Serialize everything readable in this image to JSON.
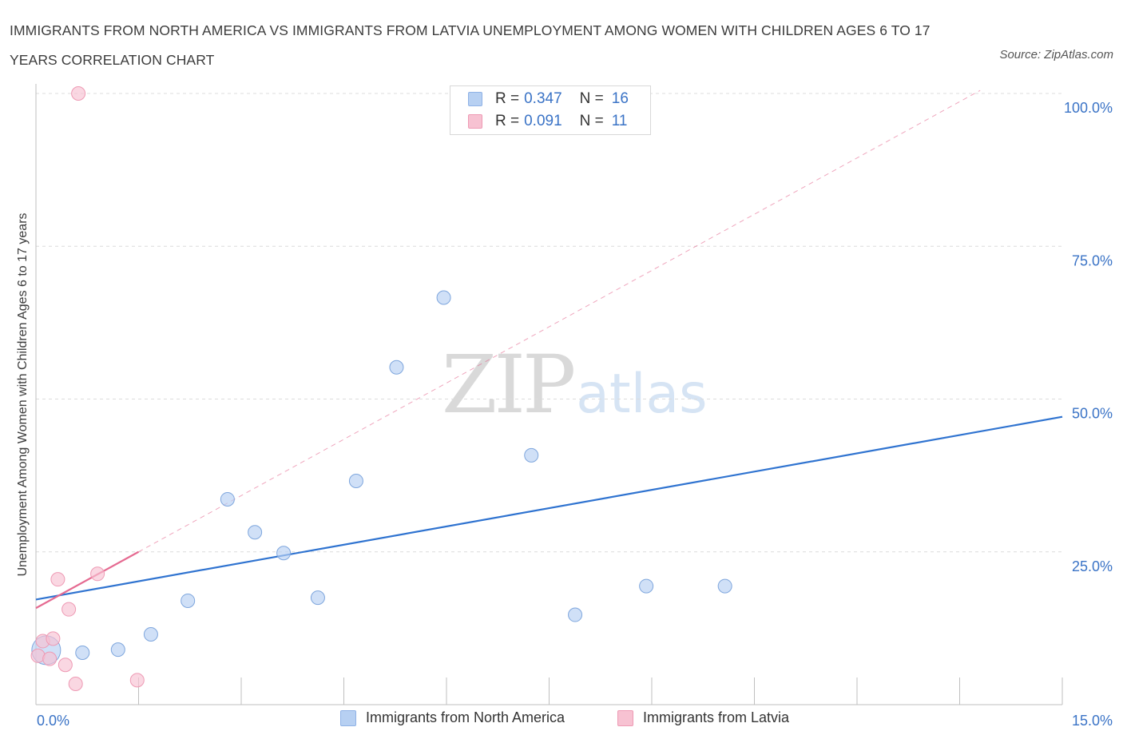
{
  "title": "IMMIGRANTS FROM NORTH AMERICA VS IMMIGRANTS FROM LATVIA UNEMPLOYMENT AMONG WOMEN WITH CHILDREN AGES 6 TO 17 YEARS CORRELATION CHART",
  "source": "Source: ZipAtlas.com",
  "watermark": {
    "zip": "ZIP",
    "atlas": "atlas"
  },
  "legend": {
    "rows": [
      {
        "r_label": "R =",
        "r_value": "0.347",
        "n_label": "N =",
        "n_value": "16",
        "color": "#b7d0f2",
        "border": "#8fb2e6"
      },
      {
        "r_label": "R =",
        "r_value": "0.091",
        "n_label": "N =",
        "n_value": "11",
        "color": "#f7c2d2",
        "border": "#ee9ab4"
      }
    ]
  },
  "chart_data": {
    "type": "scatter",
    "ylabel": "Unemployment Among Women with Children Ages 6 to 17 years",
    "xlim": [
      0,
      15
    ],
    "ylim": [
      0,
      100
    ],
    "x_tick_labels": [
      {
        "value": 0,
        "label": "0.0%"
      },
      {
        "value": 15,
        "label": "15.0%"
      }
    ],
    "y_tick_labels": [
      {
        "value": 25,
        "label": "25.0%"
      },
      {
        "value": 50,
        "label": "50.0%"
      },
      {
        "value": 75,
        "label": "75.0%"
      },
      {
        "value": 100,
        "label": "100.0%"
      }
    ],
    "grid": {
      "horizontal": true,
      "dashed": true
    },
    "series": [
      {
        "name": "Immigrants from North America",
        "color": "#b7d0f2",
        "stroke": "#7ea6dd",
        "trend_color": "#2f73d0",
        "points": [
          {
            "x": 0.15,
            "y": 8.9,
            "big": true
          },
          {
            "x": 0.68,
            "y": 8.5
          },
          {
            "x": 1.2,
            "y": 9.0
          },
          {
            "x": 1.68,
            "y": 11.5
          },
          {
            "x": 2.22,
            "y": 17.0
          },
          {
            "x": 2.8,
            "y": 33.6
          },
          {
            "x": 3.2,
            "y": 28.2
          },
          {
            "x": 3.62,
            "y": 24.8
          },
          {
            "x": 4.12,
            "y": 17.5
          },
          {
            "x": 4.68,
            "y": 36.6
          },
          {
            "x": 5.27,
            "y": 55.2
          },
          {
            "x": 5.96,
            "y": 66.6
          },
          {
            "x": 7.24,
            "y": 40.8
          },
          {
            "x": 7.88,
            "y": 14.7
          },
          {
            "x": 8.92,
            "y": 19.4
          },
          {
            "x": 10.07,
            "y": 19.4
          }
        ],
        "trend": {
          "x0": 0,
          "y0": 17.2,
          "x1": 15,
          "y1": 47.1
        }
      },
      {
        "name": "Immigrants from Latvia",
        "color": "#f7c2d2",
        "stroke": "#ee9ab4",
        "trend_color": "#e56a91",
        "points": [
          {
            "x": 0.03,
            "y": 8.0
          },
          {
            "x": 0.1,
            "y": 10.4
          },
          {
            "x": 0.2,
            "y": 7.5
          },
          {
            "x": 0.25,
            "y": 10.8
          },
          {
            "x": 0.32,
            "y": 20.5
          },
          {
            "x": 0.43,
            "y": 6.5
          },
          {
            "x": 0.48,
            "y": 15.6
          },
          {
            "x": 0.58,
            "y": 3.4
          },
          {
            "x": 0.62,
            "y": 100.0
          },
          {
            "x": 0.9,
            "y": 21.4
          },
          {
            "x": 1.48,
            "y": 4.0
          }
        ],
        "trend_solid": {
          "x0": 0,
          "y0": 15.8,
          "x1": 1.5,
          "y1": 25.0
        },
        "trend_dashed": {
          "x0": 1.5,
          "y0": 25.0,
          "x1": 13.8,
          "y1": 100.5
        }
      }
    ]
  }
}
